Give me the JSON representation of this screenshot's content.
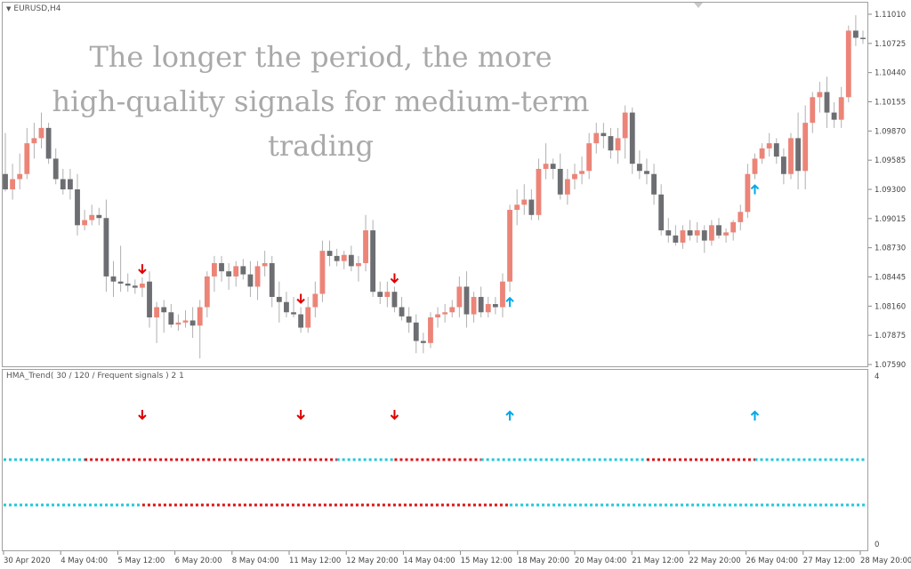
{
  "chart": {
    "symbol_label": "EURUSD,H4",
    "overlay_lines": [
      "The longer the period, the more",
      "high-quality signals for medium-term",
      "trading"
    ],
    "price_levels": [
      "1.11010",
      "1.10725",
      "1.10440",
      "1.10155",
      "1.09870",
      "1.09585",
      "1.09300",
      "1.09015",
      "1.08730",
      "1.08445",
      "1.08160",
      "1.07875",
      "1.07590"
    ],
    "bull_color": "#ec8478",
    "bear_color": "#6c6e72",
    "candles": [
      {
        "o": 1.0945,
        "h": 1.0985,
        "l": 1.0928,
        "c": 1.093
      },
      {
        "o": 1.093,
        "h": 1.0955,
        "l": 1.092,
        "c": 1.094
      },
      {
        "o": 1.094,
        "h": 1.0965,
        "l": 1.093,
        "c": 1.0945
      },
      {
        "o": 1.0945,
        "h": 1.099,
        "l": 1.094,
        "c": 1.0975
      },
      {
        "o": 1.0975,
        "h": 1.0995,
        "l": 1.096,
        "c": 1.098
      },
      {
        "o": 1.098,
        "h": 1.1005,
        "l": 1.097,
        "c": 1.099
      },
      {
        "o": 1.099,
        "h": 1.0995,
        "l": 1.0955,
        "c": 1.096
      },
      {
        "o": 1.096,
        "h": 1.097,
        "l": 1.0935,
        "c": 1.094
      },
      {
        "o": 1.094,
        "h": 1.095,
        "l": 1.0925,
        "c": 1.093
      },
      {
        "o": 1.094,
        "h": 1.095,
        "l": 1.092,
        "c": 1.093
      },
      {
        "o": 1.093,
        "h": 1.0945,
        "l": 1.0885,
        "c": 1.0895
      },
      {
        "o": 1.0895,
        "h": 1.091,
        "l": 1.089,
        "c": 1.09
      },
      {
        "o": 1.09,
        "h": 1.0915,
        "l": 1.0895,
        "c": 1.0905
      },
      {
        "o": 1.0905,
        "h": 1.0912,
        "l": 1.0895,
        "c": 1.0902
      },
      {
        "o": 1.0902,
        "h": 1.092,
        "l": 1.083,
        "c": 1.0845
      },
      {
        "o": 1.0845,
        "h": 1.086,
        "l": 1.0825,
        "c": 1.084
      },
      {
        "o": 1.084,
        "h": 1.0875,
        "l": 1.083,
        "c": 1.0838
      },
      {
        "o": 1.0838,
        "h": 1.0848,
        "l": 1.083,
        "c": 1.0836
      },
      {
        "o": 1.0836,
        "h": 1.0842,
        "l": 1.0828,
        "c": 1.0834
      },
      {
        "o": 1.0834,
        "h": 1.0844,
        "l": 1.0825,
        "c": 1.0838
      },
      {
        "o": 1.084,
        "h": 1.085,
        "l": 1.0795,
        "c": 1.0805
      },
      {
        "o": 1.0805,
        "h": 1.082,
        "l": 1.078,
        "c": 1.0815
      },
      {
        "o": 1.0815,
        "h": 1.0822,
        "l": 1.079,
        "c": 1.081
      },
      {
        "o": 1.081,
        "h": 1.0818,
        "l": 1.0795,
        "c": 1.0798
      },
      {
        "o": 1.0798,
        "h": 1.0808,
        "l": 1.0792,
        "c": 1.08
      },
      {
        "o": 1.08,
        "h": 1.0812,
        "l": 1.0795,
        "c": 1.0802
      },
      {
        "o": 1.0802,
        "h": 1.0815,
        "l": 1.0785,
        "c": 1.0797
      },
      {
        "o": 1.0797,
        "h": 1.0822,
        "l": 1.0765,
        "c": 1.0815
      },
      {
        "o": 1.0815,
        "h": 1.085,
        "l": 1.0805,
        "c": 1.0845
      },
      {
        "o": 1.0845,
        "h": 1.0865,
        "l": 1.083,
        "c": 1.0858
      },
      {
        "o": 1.0858,
        "h": 1.0865,
        "l": 1.084,
        "c": 1.085
      },
      {
        "o": 1.085,
        "h": 1.0858,
        "l": 1.0832,
        "c": 1.0845
      },
      {
        "o": 1.0845,
        "h": 1.086,
        "l": 1.0835,
        "c": 1.0855
      },
      {
        "o": 1.0855,
        "h": 1.0862,
        "l": 1.0842,
        "c": 1.0847
      },
      {
        "o": 1.0847,
        "h": 1.086,
        "l": 1.0825,
        "c": 1.0835
      },
      {
        "o": 1.0835,
        "h": 1.086,
        "l": 1.0822,
        "c": 1.0855
      },
      {
        "o": 1.0855,
        "h": 1.087,
        "l": 1.0845,
        "c": 1.0858
      },
      {
        "o": 1.0858,
        "h": 1.0865,
        "l": 1.0815,
        "c": 1.0825
      },
      {
        "o": 1.0825,
        "h": 1.084,
        "l": 1.08,
        "c": 1.082
      },
      {
        "o": 1.082,
        "h": 1.083,
        "l": 1.0805,
        "c": 1.081
      },
      {
        "o": 1.081,
        "h": 1.0825,
        "l": 1.0805,
        "c": 1.0808
      },
      {
        "o": 1.0808,
        "h": 1.0815,
        "l": 1.079,
        "c": 1.0795
      },
      {
        "o": 1.0795,
        "h": 1.0825,
        "l": 1.079,
        "c": 1.0815
      },
      {
        "o": 1.0815,
        "h": 1.084,
        "l": 1.0805,
        "c": 1.0828
      },
      {
        "o": 1.0828,
        "h": 1.088,
        "l": 1.082,
        "c": 1.087
      },
      {
        "o": 1.087,
        "h": 1.088,
        "l": 1.0855,
        "c": 1.0865
      },
      {
        "o": 1.0865,
        "h": 1.0872,
        "l": 1.0855,
        "c": 1.086
      },
      {
        "o": 1.086,
        "h": 1.087,
        "l": 1.0852,
        "c": 1.0866
      },
      {
        "o": 1.0866,
        "h": 1.0875,
        "l": 1.085,
        "c": 1.0855
      },
      {
        "o": 1.0855,
        "h": 1.0865,
        "l": 1.084,
        "c": 1.0858
      },
      {
        "o": 1.0858,
        "h": 1.0905,
        "l": 1.085,
        "c": 1.089
      },
      {
        "o": 1.089,
        "h": 1.09,
        "l": 1.0825,
        "c": 1.083
      },
      {
        "o": 1.083,
        "h": 1.084,
        "l": 1.0818,
        "c": 1.0825
      },
      {
        "o": 1.0825,
        "h": 1.084,
        "l": 1.0815,
        "c": 1.083
      },
      {
        "o": 1.083,
        "h": 1.0835,
        "l": 1.081,
        "c": 1.0815
      },
      {
        "o": 1.0815,
        "h": 1.0825,
        "l": 1.0802,
        "c": 1.0806
      },
      {
        "o": 1.0806,
        "h": 1.0815,
        "l": 1.079,
        "c": 1.08
      },
      {
        "o": 1.08,
        "h": 1.0808,
        "l": 1.077,
        "c": 1.0782
      },
      {
        "o": 1.0782,
        "h": 1.079,
        "l": 1.077,
        "c": 1.078
      },
      {
        "o": 1.078,
        "h": 1.081,
        "l": 1.0775,
        "c": 1.0805
      },
      {
        "o": 1.0805,
        "h": 1.0815,
        "l": 1.0795,
        "c": 1.0808
      },
      {
        "o": 1.0808,
        "h": 1.0818,
        "l": 1.08,
        "c": 1.081
      },
      {
        "o": 1.081,
        "h": 1.0822,
        "l": 1.0805,
        "c": 1.0815
      },
      {
        "o": 1.0815,
        "h": 1.0845,
        "l": 1.0805,
        "c": 1.0835
      },
      {
        "o": 1.0835,
        "h": 1.085,
        "l": 1.0795,
        "c": 1.0808
      },
      {
        "o": 1.0808,
        "h": 1.083,
        "l": 1.08,
        "c": 1.0825
      },
      {
        "o": 1.0825,
        "h": 1.0835,
        "l": 1.0805,
        "c": 1.081
      },
      {
        "o": 1.081,
        "h": 1.0825,
        "l": 1.0805,
        "c": 1.0818
      },
      {
        "o": 1.0818,
        "h": 1.0825,
        "l": 1.0808,
        "c": 1.0815
      },
      {
        "o": 1.0815,
        "h": 1.0848,
        "l": 1.0805,
        "c": 1.084
      },
      {
        "o": 1.084,
        "h": 1.0915,
        "l": 1.083,
        "c": 1.091
      },
      {
        "o": 1.091,
        "h": 1.093,
        "l": 1.0895,
        "c": 1.0915
      },
      {
        "o": 1.0915,
        "h": 1.0935,
        "l": 1.0905,
        "c": 1.092
      },
      {
        "o": 1.092,
        "h": 1.093,
        "l": 1.09,
        "c": 1.0905
      },
      {
        "o": 1.0905,
        "h": 1.096,
        "l": 1.09,
        "c": 1.095
      },
      {
        "o": 1.095,
        "h": 1.0975,
        "l": 1.094,
        "c": 1.0955
      },
      {
        "o": 1.0955,
        "h": 1.096,
        "l": 1.094,
        "c": 1.095
      },
      {
        "o": 1.095,
        "h": 1.0965,
        "l": 1.092,
        "c": 1.0925
      },
      {
        "o": 1.0925,
        "h": 1.095,
        "l": 1.0915,
        "c": 1.094
      },
      {
        "o": 1.094,
        "h": 1.0955,
        "l": 1.093,
        "c": 1.0945
      },
      {
        "o": 1.0945,
        "h": 1.0962,
        "l": 1.0935,
        "c": 1.0948
      },
      {
        "o": 1.0948,
        "h": 1.0985,
        "l": 1.094,
        "c": 1.0975
      },
      {
        "o": 1.0975,
        "h": 1.0995,
        "l": 1.0965,
        "c": 1.0985
      },
      {
        "o": 1.0985,
        "h": 1.0995,
        "l": 1.097,
        "c": 1.0982
      },
      {
        "o": 1.0982,
        "h": 1.099,
        "l": 1.096,
        "c": 1.0968
      },
      {
        "o": 1.0968,
        "h": 1.099,
        "l": 1.0955,
        "c": 1.098
      },
      {
        "o": 1.098,
        "h": 1.1012,
        "l": 1.096,
        "c": 1.1005
      },
      {
        "o": 1.1005,
        "h": 1.101,
        "l": 1.0945,
        "c": 1.0955
      },
      {
        "o": 1.0955,
        "h": 1.0968,
        "l": 1.094,
        "c": 1.0948
      },
      {
        "o": 1.0948,
        "h": 1.096,
        "l": 1.0935,
        "c": 1.0945
      },
      {
        "o": 1.0945,
        "h": 1.0955,
        "l": 1.0915,
        "c": 1.0925
      },
      {
        "o": 1.0925,
        "h": 1.0935,
        "l": 1.0885,
        "c": 1.089
      },
      {
        "o": 1.089,
        "h": 1.0902,
        "l": 1.0878,
        "c": 1.0885
      },
      {
        "o": 1.0885,
        "h": 1.0895,
        "l": 1.0875,
        "c": 1.0878
      },
      {
        "o": 1.0878,
        "h": 1.0895,
        "l": 1.0872,
        "c": 1.089
      },
      {
        "o": 1.089,
        "h": 1.09,
        "l": 1.088,
        "c": 1.0885
      },
      {
        "o": 1.0885,
        "h": 1.0898,
        "l": 1.0878,
        "c": 1.089
      },
      {
        "o": 1.089,
        "h": 1.0895,
        "l": 1.0868,
        "c": 1.088
      },
      {
        "o": 1.088,
        "h": 1.09,
        "l": 1.0875,
        "c": 1.0895
      },
      {
        "o": 1.0895,
        "h": 1.0902,
        "l": 1.0882,
        "c": 1.0885
      },
      {
        "o": 1.0885,
        "h": 1.0892,
        "l": 1.0878,
        "c": 1.0888
      },
      {
        "o": 1.0888,
        "h": 1.09,
        "l": 1.088,
        "c": 1.0898
      },
      {
        "o": 1.0898,
        "h": 1.0915,
        "l": 1.089,
        "c": 1.0908
      },
      {
        "o": 1.0908,
        "h": 1.0955,
        "l": 1.0902,
        "c": 1.0945
      },
      {
        "o": 1.0945,
        "h": 1.0965,
        "l": 1.094,
        "c": 1.096
      },
      {
        "o": 1.096,
        "h": 1.0975,
        "l": 1.0955,
        "c": 1.097
      },
      {
        "o": 1.097,
        "h": 1.0985,
        "l": 1.0962,
        "c": 1.0975
      },
      {
        "o": 1.0975,
        "h": 1.098,
        "l": 1.0955,
        "c": 1.0962
      },
      {
        "o": 1.0962,
        "h": 1.097,
        "l": 1.0935,
        "c": 1.0945
      },
      {
        "o": 1.0945,
        "h": 1.0985,
        "l": 1.094,
        "c": 1.098
      },
      {
        "o": 1.098,
        "h": 1.1005,
        "l": 1.093,
        "c": 1.0948
      },
      {
        "o": 1.0948,
        "h": 1.1012,
        "l": 1.093,
        "c": 1.0995
      },
      {
        "o": 1.0995,
        "h": 1.1025,
        "l": 1.0985,
        "c": 1.102
      },
      {
        "o": 1.102,
        "h": 1.1035,
        "l": 1.1005,
        "c": 1.1025
      },
      {
        "o": 1.1025,
        "h": 1.104,
        "l": 1.099,
        "c": 1.1005
      },
      {
        "o": 1.1005,
        "h": 1.1015,
        "l": 1.099,
        "c": 1.0998
      },
      {
        "o": 1.0998,
        "h": 1.103,
        "l": 1.099,
        "c": 1.102
      },
      {
        "o": 1.102,
        "h": 1.109,
        "l": 1.1015,
        "c": 1.1085
      },
      {
        "o": 1.1085,
        "h": 1.11,
        "l": 1.107,
        "c": 1.1078
      },
      {
        "o": 1.1078,
        "h": 1.1085,
        "l": 1.1072,
        "c": 1.1077
      }
    ],
    "arrows_main": [
      {
        "i": 19,
        "dir": "down"
      },
      {
        "i": 41,
        "dir": "down"
      },
      {
        "i": 54,
        "dir": "down"
      },
      {
        "i": 70,
        "dir": "up"
      },
      {
        "i": 104,
        "dir": "up"
      }
    ],
    "down_color": "#e00000",
    "up_color": "#00a8e8"
  },
  "indicator": {
    "title": "HMA_Trend( 30 / 120 / Frequent signals ) 2 1",
    "scale_top": "4",
    "scale_bottom": "0",
    "line_color_up": "#1ec8dc",
    "line_color_down": "#dd1111",
    "upper_line_segments": [
      {
        "from": 0,
        "to": 11,
        "state": "up"
      },
      {
        "from": 11,
        "to": 46,
        "state": "down"
      },
      {
        "from": 46,
        "to": 54,
        "state": "up"
      },
      {
        "from": 54,
        "to": 66,
        "state": "down"
      },
      {
        "from": 66,
        "to": 89,
        "state": "up"
      },
      {
        "from": 89,
        "to": 104,
        "state": "down"
      },
      {
        "from": 104,
        "to": 121,
        "state": "up"
      }
    ],
    "lower_line_segments": [
      {
        "from": 0,
        "to": 19,
        "state": "up"
      },
      {
        "from": 19,
        "to": 70,
        "state": "down"
      },
      {
        "from": 70,
        "to": 121,
        "state": "up"
      }
    ]
  },
  "time_axis": [
    "30 Apr 2020",
    "4 May 04:00",
    "5 May 12:00",
    "6 May 20:00",
    "8 May 04:00",
    "11 May 12:00",
    "12 May 20:00",
    "14 May 04:00",
    "15 May 12:00",
    "18 May 20:00",
    "20 May 04:00",
    "21 May 12:00",
    "22 May 20:00",
    "26 May 04:00",
    "27 May 12:00",
    "28 May 20:00"
  ]
}
